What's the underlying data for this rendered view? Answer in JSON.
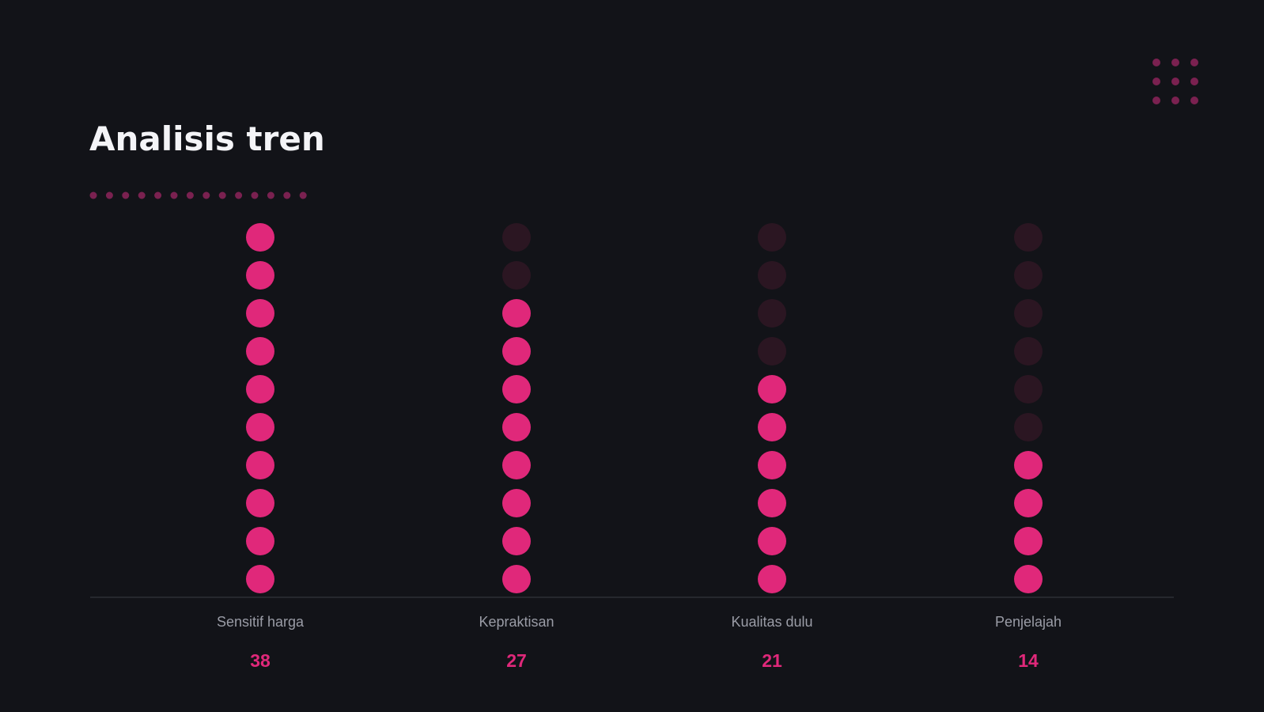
{
  "title": "Analisis tren",
  "colors": {
    "background": "#121318",
    "accent": "#e0287a",
    "inactive_dot": "#2b1622",
    "decor_dot": "#7a2150",
    "baseline": "#3a3c45",
    "label": "#9a9ca6",
    "title": "#f4f4f7"
  },
  "chart_data": {
    "type": "dot-column",
    "categories": [
      "Sensitif harga",
      "Kepraktisan",
      "Kualitas dulu",
      "Penjelajah"
    ],
    "values": [
      38,
      27,
      21,
      14
    ],
    "filled_dots": [
      10,
      8,
      6,
      4
    ],
    "total_dots": 10
  }
}
